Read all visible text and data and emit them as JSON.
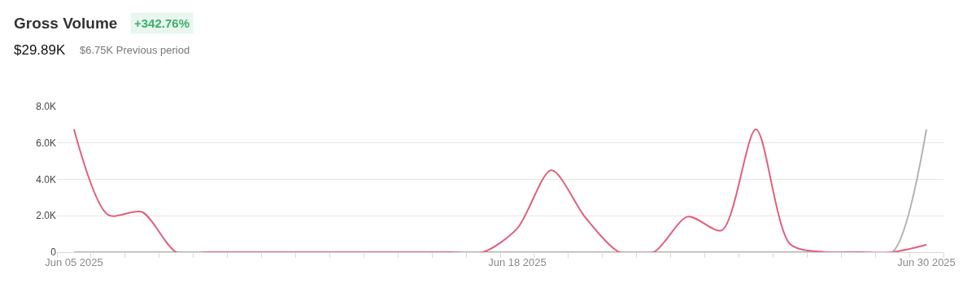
{
  "chart_data": {
    "type": "line",
    "title": "Gross Volume",
    "subtitle": "$29.89K",
    "annotations": [
      "+342.76%",
      "$6.75K Previous period"
    ],
    "x": [
      "2025-06-05",
      "2025-06-06",
      "2025-06-07",
      "2025-06-08",
      "2025-06-09",
      "2025-06-10",
      "2025-06-11",
      "2025-06-12",
      "2025-06-13",
      "2025-06-14",
      "2025-06-15",
      "2025-06-16",
      "2025-06-17",
      "2025-06-18",
      "2025-06-19",
      "2025-06-20",
      "2025-06-21",
      "2025-06-22",
      "2025-06-23",
      "2025-06-24",
      "2025-06-25",
      "2025-06-26",
      "2025-06-27",
      "2025-06-28",
      "2025-06-29",
      "2025-06-30"
    ],
    "series": [
      {
        "color": "#b3b3b3",
        "values": [
          0,
          0,
          0,
          0,
          0,
          0,
          0,
          0,
          0,
          0,
          0,
          0,
          0,
          0,
          0,
          0,
          0,
          0,
          0,
          0,
          0,
          0,
          0,
          0,
          0,
          6750
        ]
      },
      {
        "color": "#e0607e",
        "values": [
          6750,
          2050,
          2200,
          0,
          0,
          0,
          0,
          0,
          0,
          0,
          0,
          0,
          0,
          1300,
          4500,
          1900,
          0,
          0,
          1950,
          1200,
          6750,
          450,
          0,
          0,
          0,
          400
        ]
      }
    ],
    "xlim": [
      "2025-06-04T12:00",
      "2025-06-30T12:00"
    ],
    "xticks": [
      {
        "value": "2025-06-05",
        "label": "Jun 05 2025"
      },
      {
        "value": "2025-06-18",
        "label": "Jun 18 2025"
      },
      {
        "value": "2025-06-30",
        "label": "Jun 30 2025"
      },
      {
        "value": "2025-06-04T12:00",
        "label": null
      },
      {
        "value": "2025-06-05T12:00",
        "label": null
      },
      {
        "value": "2025-06-06T12:00",
        "label": null
      },
      {
        "value": "2025-06-07T12:00",
        "label": null
      },
      {
        "value": "2025-06-08T12:00",
        "label": null
      },
      {
        "value": "2025-06-09T12:00",
        "label": null
      },
      {
        "value": "2025-06-10T12:00",
        "label": null
      },
      {
        "value": "2025-06-11T12:00",
        "label": null
      },
      {
        "value": "2025-06-12T12:00",
        "label": null
      },
      {
        "value": "2025-06-13T12:00",
        "label": null
      },
      {
        "value": "2025-06-14T12:00",
        "label": null
      },
      {
        "value": "2025-06-15T12:00",
        "label": null
      },
      {
        "value": "2025-06-16T12:00",
        "label": null
      },
      {
        "value": "2025-06-17T12:00",
        "label": null
      },
      {
        "value": "2025-06-18T12:00",
        "label": null
      },
      {
        "value": "2025-06-19T12:00",
        "label": null
      },
      {
        "value": "2025-06-20T12:00",
        "label": null
      },
      {
        "value": "2025-06-21T12:00",
        "label": null
      },
      {
        "value": "2025-06-22T12:00",
        "label": null
      },
      {
        "value": "2025-06-23T12:00",
        "label": null
      },
      {
        "value": "2025-06-24T12:00",
        "label": null
      },
      {
        "value": "2025-06-25T12:00",
        "label": null
      },
      {
        "value": "2025-06-26T12:00",
        "label": null
      },
      {
        "value": "2025-06-27T12:00",
        "label": null
      },
      {
        "value": "2025-06-28T12:00",
        "label": null
      },
      {
        "value": "2025-06-29T12:00",
        "label": null
      },
      {
        "value": "2025-06-30T12:00",
        "label": null
      }
    ],
    "ylim": [
      0,
      8000
    ],
    "yticks": [
      0,
      {
        "value": 2000,
        "label": "2.0K"
      },
      {
        "value": 4000,
        "label": "4.0K"
      },
      {
        "value": 6000,
        "label": "6.0K"
      },
      {
        "value": 8000,
        "label": "8.0K"
      }
    ],
    "grid": "y",
    "marker": "none",
    "line_style": "solid"
  }
}
